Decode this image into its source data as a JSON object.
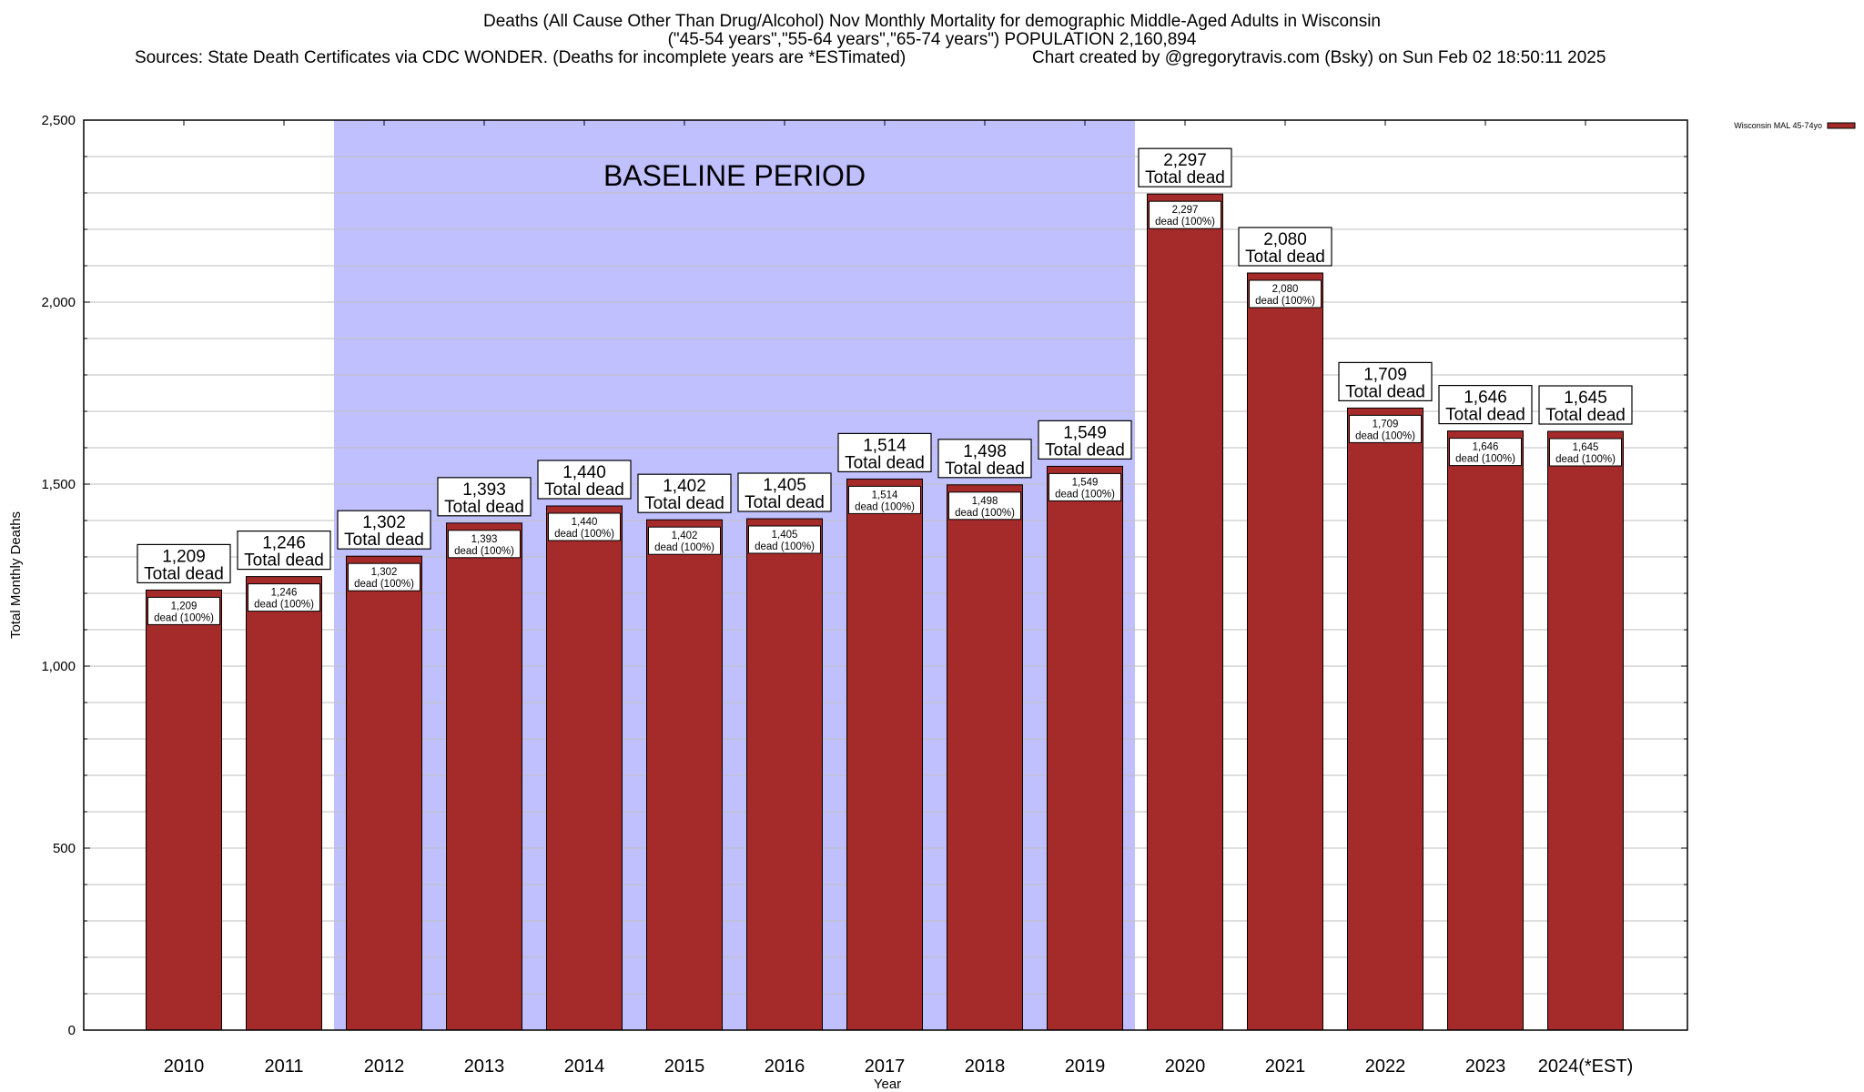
{
  "chart_data": {
    "type": "bar",
    "title": "Deaths (All Cause Other Than Drug/Alcohol) Nov Monthly Mortality for demographic Middle-Aged Adults in Wisconsin",
    "subtitle": "(\"45-54 years\",\"55-64 years\",\"65-74 years\") POPULATION 2,160,894",
    "source": "Sources: State Death Certificates via CDC WONDER. (Deaths for incomplete years are *ESTimated)",
    "credit": "Chart created by @gregorytravis.com (Bsky) on Sun Feb 02 18:50:11 2025",
    "xlabel": "Year",
    "ylabel": "Total Monthly Deaths",
    "ylim": [
      0,
      2500
    ],
    "yticks": [
      0,
      500,
      1000,
      1500,
      2000,
      2500
    ],
    "ytick_labels": [
      "0",
      "500",
      "1,000",
      "1,500",
      "2,000",
      "2,500"
    ],
    "minor_grid_step": 100,
    "grid": true,
    "categories": [
      "2010",
      "2011",
      "2012",
      "2013",
      "2014",
      "2015",
      "2016",
      "2017",
      "2018",
      "2019",
      "2020",
      "2021",
      "2022",
      "2023",
      "2024(*EST)"
    ],
    "series": [
      {
        "name": "Wisconsin MAL 45-74yo",
        "color": "#a52a2a",
        "values": [
          1209,
          1246,
          1302,
          1393,
          1440,
          1402,
          1405,
          1514,
          1498,
          1549,
          2297,
          2080,
          1709,
          1646,
          1645
        ]
      }
    ],
    "value_labels": [
      "1,209",
      "1,246",
      "1,302",
      "1,393",
      "1,440",
      "1,402",
      "1,405",
      "1,514",
      "1,498",
      "1,549",
      "2,297",
      "2,080",
      "1,709",
      "1,646",
      "1,645"
    ],
    "total_label_suffix": "Total dead",
    "inner_label_suffix": "dead (100%)",
    "legend": {
      "position": "top-right",
      "label": "Wisconsin MAL 45-74yo"
    },
    "annotation": {
      "text": "BASELINE PERIOD",
      "start_category": "2012",
      "end_category": "2019",
      "color": "#c0c0ff"
    }
  }
}
